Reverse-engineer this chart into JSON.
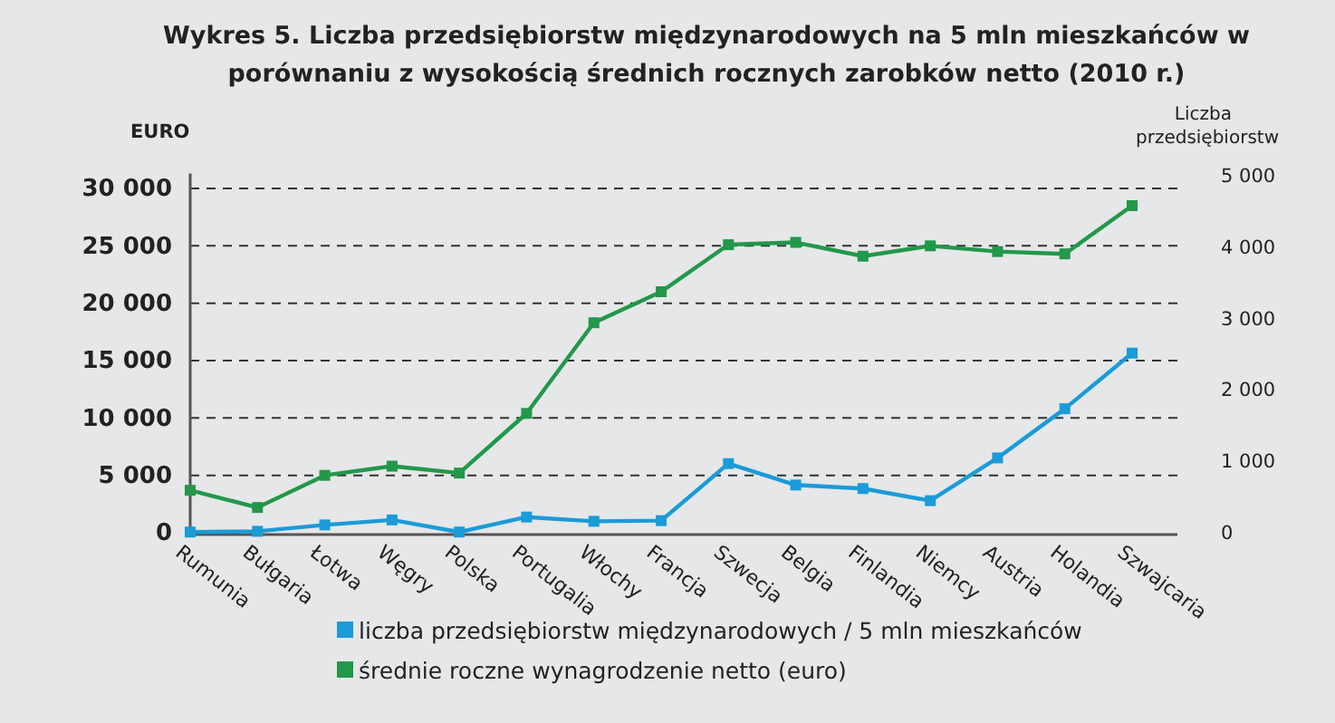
{
  "chart_data": {
    "type": "line",
    "title": "Wykres 5. Liczba przedsiębiorstw międzynarodowych na 5 mln mieszkańców w porównaniu z wysokością średnich rocznych zarobków netto (2010 r.)",
    "ylabel": "EURO",
    "y2label": "Liczba przedsiębiorstw",
    "categories": [
      "Rumunia",
      "Bułgaria",
      "Łotwa",
      "Węgry",
      "Polska",
      "Portugalia",
      "Włochy",
      "Francja",
      "Szwecja",
      "Belgia",
      "Finlandia",
      "Niemcy",
      "Austria",
      "Holandia",
      "Szwajcaria"
    ],
    "series": [
      {
        "name": "liczba przedsiębiorstw międzynarodowych / 5 mln mieszkańców",
        "color": "#1b9bd7",
        "axis": "y2",
        "values": [
          10,
          20,
          110,
          180,
          10,
          220,
          160,
          170,
          970,
          670,
          620,
          450,
          1050,
          1740,
          2520
        ]
      },
      {
        "name": "średnie roczne wynagrodzenie netto (euro)",
        "color": "#22984a",
        "values": [
          3700,
          2200,
          5000,
          5800,
          5200,
          10400,
          18300,
          21000,
          25100,
          25300,
          24100,
          25000,
          24500,
          24300,
          28500
        ]
      }
    ],
    "ylim": [
      0,
      31300
    ],
    "yticks": [
      0,
      {
        "value": 5000,
        "label": "5 000"
      },
      {
        "value": 10000,
        "label": "10 000"
      },
      {
        "value": 15000,
        "label": "15 000"
      },
      {
        "value": 20000,
        "label": "20 000"
      },
      {
        "value": 25000,
        "label": "25 000"
      },
      {
        "value": 30000,
        "label": "30 000"
      }
    ],
    "y2lim": [
      0,
      5040
    ],
    "y2ticks": [
      0,
      {
        "value": 1000,
        "label": "1 000"
      },
      {
        "value": 2000,
        "label": "2 000"
      },
      {
        "value": 3000,
        "label": "3 000"
      },
      {
        "value": 4000,
        "label": "4 000"
      },
      {
        "value": 5000,
        "label": "5 000"
      }
    ],
    "grid": "y",
    "legend": "bottom",
    "marker": "square",
    "line_style": "solid"
  }
}
